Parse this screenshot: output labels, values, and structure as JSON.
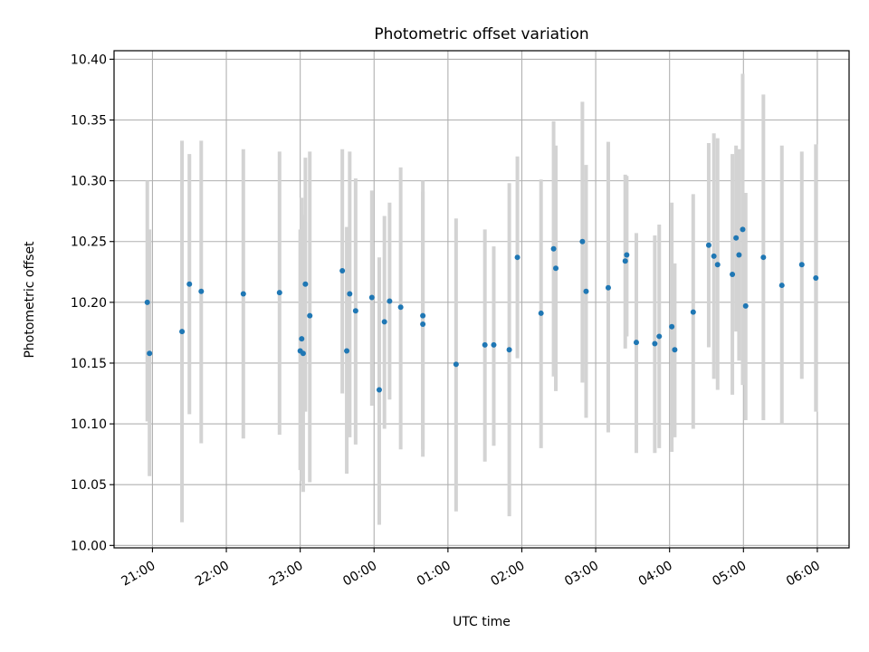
{
  "chart_data": {
    "type": "scatter",
    "title": "Photometric offset variation",
    "xlabel": "UTC time",
    "ylabel": "Photometric offset",
    "grid": true,
    "legend": "none",
    "x_unit": "hour_after_midnight_of_first_night",
    "xlim": [
      -3.52,
      6.43
    ],
    "ylim": [
      9.998,
      10.407
    ],
    "x_ticks": [
      {
        "x": -3.0,
        "label": "21:00"
      },
      {
        "x": -2.0,
        "label": "22:00"
      },
      {
        "x": -1.0,
        "label": "23:00"
      },
      {
        "x": 0.0,
        "label": "00:00"
      },
      {
        "x": 1.0,
        "label": "01:00"
      },
      {
        "x": 2.0,
        "label": "02:00"
      },
      {
        "x": 3.0,
        "label": "03:00"
      },
      {
        "x": 4.0,
        "label": "04:00"
      },
      {
        "x": 5.0,
        "label": "05:00"
      },
      {
        "x": 6.0,
        "label": "06:00"
      }
    ],
    "y_ticks": [
      {
        "y": 10.0,
        "label": "10.00"
      },
      {
        "y": 10.05,
        "label": "10.05"
      },
      {
        "y": 10.1,
        "label": "10.10"
      },
      {
        "y": 10.15,
        "label": "10.15"
      },
      {
        "y": 10.2,
        "label": "10.20"
      },
      {
        "y": 10.25,
        "label": "10.25"
      },
      {
        "y": 10.3,
        "label": "10.30"
      },
      {
        "y": 10.35,
        "label": "10.35"
      },
      {
        "y": 10.4,
        "label": "10.40"
      }
    ],
    "colors": {
      "point": "#1f77b4",
      "errorbar": "#d3d3d3",
      "grid": "#b0b0b0",
      "axes": "#000000"
    },
    "points": [
      {
        "x": -3.07,
        "y": 10.2,
        "lo": 10.102,
        "hi": 10.3
      },
      {
        "x": -3.04,
        "y": 10.158,
        "lo": 10.057,
        "hi": 10.26
      },
      {
        "x": -2.6,
        "y": 10.176,
        "lo": 10.019,
        "hi": 10.333
      },
      {
        "x": -2.5,
        "y": 10.215,
        "lo": 10.108,
        "hi": 10.322
      },
      {
        "x": -2.34,
        "y": 10.209,
        "lo": 10.084,
        "hi": 10.333
      },
      {
        "x": -1.77,
        "y": 10.207,
        "lo": 10.088,
        "hi": 10.326
      },
      {
        "x": -1.28,
        "y": 10.208,
        "lo": 10.091,
        "hi": 10.324
      },
      {
        "x": -1.0,
        "y": 10.16,
        "lo": 10.062,
        "hi": 10.26
      },
      {
        "x": -0.98,
        "y": 10.17,
        "lo": 10.053,
        "hi": 10.286
      },
      {
        "x": -0.96,
        "y": 10.158,
        "lo": 10.044,
        "hi": 10.272
      },
      {
        "x": -0.93,
        "y": 10.215,
        "lo": 10.11,
        "hi": 10.319
      },
      {
        "x": -0.87,
        "y": 10.189,
        "lo": 10.052,
        "hi": 10.324
      },
      {
        "x": -0.43,
        "y": 10.226,
        "lo": 10.125,
        "hi": 10.326
      },
      {
        "x": -0.37,
        "y": 10.16,
        "lo": 10.059,
        "hi": 10.262
      },
      {
        "x": -0.33,
        "y": 10.207,
        "lo": 10.089,
        "hi": 10.324
      },
      {
        "x": -0.25,
        "y": 10.193,
        "lo": 10.083,
        "hi": 10.302
      },
      {
        "x": -0.03,
        "y": 10.204,
        "lo": 10.115,
        "hi": 10.292
      },
      {
        "x": 0.07,
        "y": 10.128,
        "lo": 10.017,
        "hi": 10.237
      },
      {
        "x": 0.14,
        "y": 10.184,
        "lo": 10.096,
        "hi": 10.271
      },
      {
        "x": 0.21,
        "y": 10.201,
        "lo": 10.12,
        "hi": 10.282
      },
      {
        "x": 0.36,
        "y": 10.196,
        "lo": 10.079,
        "hi": 10.311
      },
      {
        "x": 0.66,
        "y": 10.189,
        "lo": 10.079,
        "hi": 10.3
      },
      {
        "x": 0.66,
        "y": 10.182,
        "lo": 10.073,
        "hi": 10.291
      },
      {
        "x": 1.11,
        "y": 10.149,
        "lo": 10.028,
        "hi": 10.269
      },
      {
        "x": 1.5,
        "y": 10.165,
        "lo": 10.069,
        "hi": 10.26
      },
      {
        "x": 1.62,
        "y": 10.165,
        "lo": 10.082,
        "hi": 10.246
      },
      {
        "x": 1.83,
        "y": 10.161,
        "lo": 10.024,
        "hi": 10.298
      },
      {
        "x": 1.94,
        "y": 10.237,
        "lo": 10.154,
        "hi": 10.32
      },
      {
        "x": 2.26,
        "y": 10.191,
        "lo": 10.08,
        "hi": 10.301
      },
      {
        "x": 2.43,
        "y": 10.244,
        "lo": 10.139,
        "hi": 10.349
      },
      {
        "x": 2.46,
        "y": 10.228,
        "lo": 10.127,
        "hi": 10.329
      },
      {
        "x": 2.82,
        "y": 10.25,
        "lo": 10.134,
        "hi": 10.365
      },
      {
        "x": 2.87,
        "y": 10.209,
        "lo": 10.105,
        "hi": 10.313
      },
      {
        "x": 3.17,
        "y": 10.212,
        "lo": 10.093,
        "hi": 10.332
      },
      {
        "x": 3.4,
        "y": 10.234,
        "lo": 10.162,
        "hi": 10.305
      },
      {
        "x": 3.42,
        "y": 10.239,
        "lo": 10.172,
        "hi": 10.304
      },
      {
        "x": 3.55,
        "y": 10.167,
        "lo": 10.076,
        "hi": 10.257
      },
      {
        "x": 3.8,
        "y": 10.166,
        "lo": 10.076,
        "hi": 10.255
      },
      {
        "x": 3.86,
        "y": 10.172,
        "lo": 10.08,
        "hi": 10.264
      },
      {
        "x": 4.03,
        "y": 10.18,
        "lo": 10.077,
        "hi": 10.282
      },
      {
        "x": 4.07,
        "y": 10.161,
        "lo": 10.089,
        "hi": 10.232
      },
      {
        "x": 4.32,
        "y": 10.192,
        "lo": 10.096,
        "hi": 10.289
      },
      {
        "x": 4.53,
        "y": 10.247,
        "lo": 10.163,
        "hi": 10.331
      },
      {
        "x": 4.6,
        "y": 10.238,
        "lo": 10.137,
        "hi": 10.339
      },
      {
        "x": 4.65,
        "y": 10.231,
        "lo": 10.128,
        "hi": 10.335
      },
      {
        "x": 4.85,
        "y": 10.223,
        "lo": 10.124,
        "hi": 10.322
      },
      {
        "x": 4.9,
        "y": 10.253,
        "lo": 10.176,
        "hi": 10.329
      },
      {
        "x": 4.94,
        "y": 10.239,
        "lo": 10.152,
        "hi": 10.326
      },
      {
        "x": 4.99,
        "y": 10.26,
        "lo": 10.132,
        "hi": 10.388
      },
      {
        "x": 5.03,
        "y": 10.197,
        "lo": 10.103,
        "hi": 10.29
      },
      {
        "x": 5.27,
        "y": 10.237,
        "lo": 10.103,
        "hi": 10.371
      },
      {
        "x": 5.52,
        "y": 10.214,
        "lo": 10.1,
        "hi": 10.329
      },
      {
        "x": 5.79,
        "y": 10.231,
        "lo": 10.137,
        "hi": 10.324
      },
      {
        "x": 5.98,
        "y": 10.22,
        "lo": 10.11,
        "hi": 10.33
      }
    ]
  }
}
